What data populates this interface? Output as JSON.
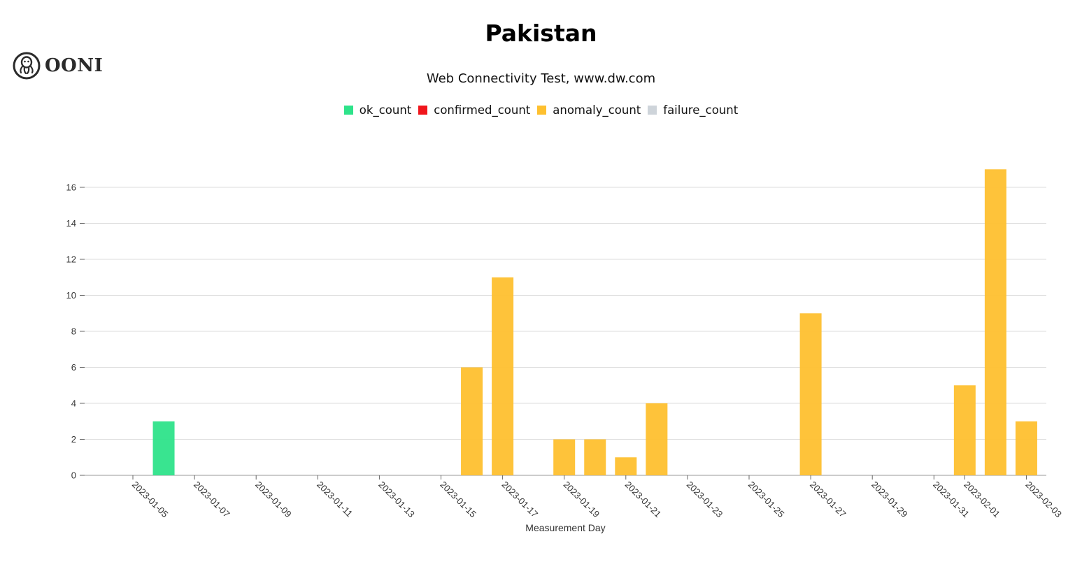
{
  "logo": {
    "text": "OONI"
  },
  "colors": {
    "ok_count": "#2ee38a",
    "confirmed_count": "#f0161c",
    "anomaly_count": "#fec02f",
    "failure_count": "#ced4da",
    "grid": "#dddddd",
    "axis": "#999999"
  },
  "chart_data": {
    "type": "bar",
    "title": "Pakistan",
    "subtitle": "Web Connectivity Test, www.dw.com",
    "xlabel": "Measurement Day",
    "ylabel": "",
    "ylim": [
      0,
      17
    ],
    "yticks": [
      0,
      2,
      4,
      6,
      8,
      10,
      12,
      14,
      16
    ],
    "xlim": [
      "2023-01-04",
      "2023-02-03"
    ],
    "xticks": [
      "2023-01-05",
      "2023-01-07",
      "2023-01-09",
      "2023-01-11",
      "2023-01-13",
      "2023-01-15",
      "2023-01-17",
      "2023-01-19",
      "2023-01-21",
      "2023-01-23",
      "2023-01-25",
      "2023-01-27",
      "2023-01-29",
      "2023-01-31",
      "2023-02-01",
      "2023-02-03"
    ],
    "grid": true,
    "legend_position": "top-center",
    "series": [
      {
        "name": "ok_count",
        "points": [
          {
            "x": "2023-01-06",
            "y": 3
          }
        ]
      },
      {
        "name": "confirmed_count",
        "points": []
      },
      {
        "name": "anomaly_count",
        "points": [
          {
            "x": "2023-01-16",
            "y": 6
          },
          {
            "x": "2023-01-17",
            "y": 11
          },
          {
            "x": "2023-01-19",
            "y": 2
          },
          {
            "x": "2023-01-20",
            "y": 2
          },
          {
            "x": "2023-01-21",
            "y": 1
          },
          {
            "x": "2023-01-22",
            "y": 4
          },
          {
            "x": "2023-01-27",
            "y": 9
          },
          {
            "x": "2023-02-01",
            "y": 5
          },
          {
            "x": "2023-02-02",
            "y": 17
          },
          {
            "x": "2023-02-03",
            "y": 3
          }
        ]
      },
      {
        "name": "failure_count",
        "points": []
      }
    ]
  }
}
